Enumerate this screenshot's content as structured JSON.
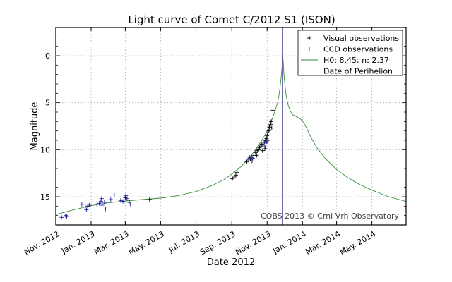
{
  "chart_data": {
    "type": "scatter",
    "title": "Light curve of Comet C/2012 S1 (ISON)",
    "xlabel": "Date 2012",
    "ylabel": "Magnitude",
    "x_units": "days since 2012-11-01",
    "xlim": [
      0,
      605
    ],
    "ylim": [
      18,
      -3
    ],
    "y_inverted": true,
    "grid": true,
    "legend_position": "top-right",
    "x_ticks": [
      {
        "value": 0,
        "label": "Nov. 2012"
      },
      {
        "value": 61,
        "label": "Jan. 2013"
      },
      {
        "value": 120,
        "label": "Mar. 2013"
      },
      {
        "value": 181,
        "label": "May. 2013"
      },
      {
        "value": 242,
        "label": "Jul. 2013"
      },
      {
        "value": 304,
        "label": "Sep. 2013"
      },
      {
        "value": 365,
        "label": "Nov. 2013"
      },
      {
        "value": 426,
        "label": "Jan. 2014"
      },
      {
        "value": 485,
        "label": "Mar. 2014"
      },
      {
        "value": 546,
        "label": "May. 2014"
      }
    ],
    "y_ticks": [
      {
        "value": 0,
        "label": "0"
      },
      {
        "value": 5,
        "label": "5"
      },
      {
        "value": 10,
        "label": "10"
      },
      {
        "value": 15,
        "label": "15"
      }
    ],
    "annotation": "COBS 2013 © Crni Vrh Observatory",
    "series": [
      {
        "name": "Visual observations",
        "kind": "scatter",
        "marker": "+",
        "color": "#000000",
        "points": [
          [
            120,
            15.1
          ],
          [
            162,
            15.3
          ],
          [
            305,
            13.1
          ],
          [
            308,
            12.9
          ],
          [
            311,
            12.7
          ],
          [
            313,
            12.4
          ],
          [
            330,
            11.3
          ],
          [
            334,
            11.0
          ],
          [
            338,
            10.8
          ],
          [
            342,
            10.6
          ],
          [
            345,
            10.3
          ],
          [
            348,
            10.1
          ],
          [
            350,
            10.0
          ],
          [
            352,
            9.8
          ],
          [
            354,
            9.6
          ],
          [
            356,
            9.4
          ],
          [
            358,
            9.7
          ],
          [
            360,
            9.2
          ],
          [
            362,
            9.0
          ],
          [
            363,
            9.3
          ],
          [
            364,
            8.8
          ],
          [
            365,
            8.5
          ],
          [
            366,
            8.2
          ],
          [
            368,
            8.0
          ],
          [
            369,
            7.6
          ],
          [
            370,
            7.9
          ],
          [
            371,
            7.3
          ],
          [
            372,
            7.0
          ],
          [
            373,
            7.7
          ],
          [
            375,
            5.8
          ],
          [
            366,
            9.0
          ],
          [
            361,
            9.9
          ],
          [
            357,
            10.1
          ],
          [
            347,
            10.6
          ],
          [
            339,
            11.2
          ],
          [
            336,
            11.0
          ]
        ]
      },
      {
        "name": "CCD observations",
        "kind": "scatter",
        "marker": "+",
        "color": "#1f1f9f",
        "points": [
          [
            10,
            17.2
          ],
          [
            17,
            17.0
          ],
          [
            19,
            17.1
          ],
          [
            45,
            15.8
          ],
          [
            51,
            16.1
          ],
          [
            53,
            16.4
          ],
          [
            55,
            16.0
          ],
          [
            58,
            15.9
          ],
          [
            71,
            15.8
          ],
          [
            75,
            15.7
          ],
          [
            78,
            15.5
          ],
          [
            79,
            15.2
          ],
          [
            80,
            15.9
          ],
          [
            84,
            15.6
          ],
          [
            86,
            16.3
          ],
          [
            95,
            15.3
          ],
          [
            101,
            14.8
          ],
          [
            112,
            15.4
          ],
          [
            116,
            15.5
          ],
          [
            121,
            14.9
          ],
          [
            123,
            15.2
          ],
          [
            127,
            15.6
          ],
          [
            129,
            15.8
          ],
          [
            332,
            11.0
          ],
          [
            335,
            10.8
          ],
          [
            337,
            11.0
          ],
          [
            340,
            10.9
          ],
          [
            362,
            9.7
          ],
          [
            364,
            9.1
          ],
          [
            360,
            9.5
          ]
        ]
      },
      {
        "name": "H0: 8.45; n: 2.37",
        "kind": "line",
        "color": "#3a8a3a",
        "points": [
          [
            0,
            16.9
          ],
          [
            30,
            16.4
          ],
          [
            61,
            15.95
          ],
          [
            90,
            15.65
          ],
          [
            120,
            15.45
          ],
          [
            150,
            15.3
          ],
          [
            181,
            15.15
          ],
          [
            210,
            14.9
          ],
          [
            242,
            14.45
          ],
          [
            270,
            13.8
          ],
          [
            290,
            13.2
          ],
          [
            304,
            12.6
          ],
          [
            320,
            11.8
          ],
          [
            335,
            10.8
          ],
          [
            345,
            10.0
          ],
          [
            355,
            9.1
          ],
          [
            365,
            8.0
          ],
          [
            372,
            7.0
          ],
          [
            378,
            6.0
          ],
          [
            383,
            5.0
          ],
          [
            386,
            4.0
          ],
          [
            388,
            3.0
          ],
          [
            390,
            1.8
          ],
          [
            391,
            0.9
          ],
          [
            392,
            0.0
          ],
          [
            393,
            0.9
          ],
          [
            394,
            2.0
          ],
          [
            396,
            3.3
          ],
          [
            398,
            4.3
          ],
          [
            401,
            5.2
          ],
          [
            405,
            5.9
          ],
          [
            410,
            6.3
          ],
          [
            416,
            6.5
          ],
          [
            422,
            6.7
          ],
          [
            428,
            7.1
          ],
          [
            434,
            7.8
          ],
          [
            440,
            8.6
          ],
          [
            450,
            9.7
          ],
          [
            465,
            10.9
          ],
          [
            485,
            12.1
          ],
          [
            505,
            13.0
          ],
          [
            525,
            13.7
          ],
          [
            546,
            14.3
          ],
          [
            575,
            15.0
          ],
          [
            605,
            15.5
          ]
        ]
      },
      {
        "name": "Date of Perihelion",
        "kind": "vline",
        "color": "#5a5a9a",
        "x": 392
      }
    ]
  }
}
